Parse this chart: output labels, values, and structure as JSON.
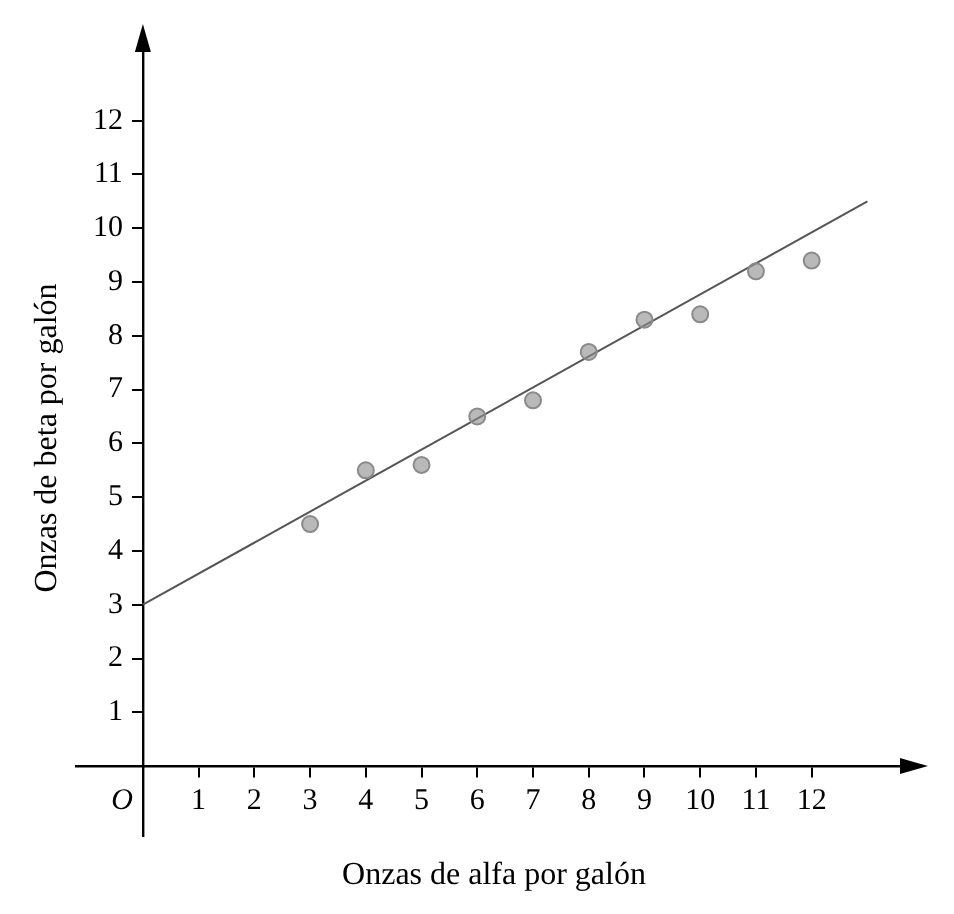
{
  "chart_data": {
    "type": "scatter",
    "xlabel": "Onzas de alfa por galón",
    "ylabel": "Onzas de beta por galón",
    "x": [
      3,
      4,
      5,
      6,
      7,
      8,
      9,
      10,
      11,
      12
    ],
    "series": [
      {
        "type": "scatter",
        "color": "#8a8a8a",
        "marker": "circle",
        "values": [
          4.5,
          5.5,
          5.6,
          6.5,
          6.8,
          7.7,
          8.3,
          8.4,
          9.2,
          9.4
        ]
      },
      {
        "type": "line",
        "color": "#555555",
        "x": [
          0,
          13
        ],
        "values": [
          3,
          10.5
        ]
      }
    ],
    "xlim": [
      -1.2,
      13.8
    ],
    "ylim": [
      -1.3,
      13.5
    ],
    "xticks": [
      1,
      2,
      3,
      4,
      5,
      6,
      7,
      8,
      9,
      10,
      11,
      12
    ],
    "annotations": [
      "O"
    ],
    "yticks": [
      1,
      2,
      3,
      4,
      5,
      6,
      7,
      8,
      9,
      10,
      11,
      12
    ],
    "grid": false,
    "legend": false,
    "line_style": "solid"
  }
}
